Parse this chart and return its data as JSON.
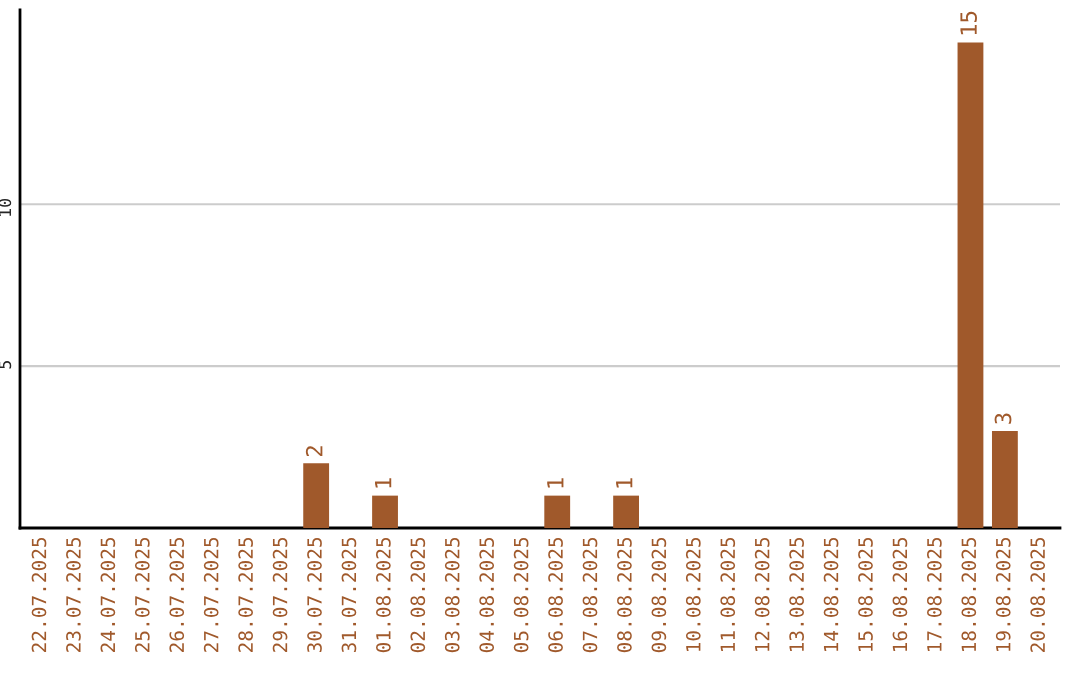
{
  "chart_data": {
    "type": "bar",
    "categories": [
      "22.07.2025",
      "23.07.2025",
      "24.07.2025",
      "25.07.2025",
      "26.07.2025",
      "27.07.2025",
      "28.07.2025",
      "29.07.2025",
      "30.07.2025",
      "31.07.2025",
      "01.08.2025",
      "02.08.2025",
      "03.08.2025",
      "04.08.2025",
      "05.08.2025",
      "06.08.2025",
      "07.08.2025",
      "08.08.2025",
      "09.08.2025",
      "10.08.2025",
      "11.08.2025",
      "12.08.2025",
      "13.08.2025",
      "14.08.2025",
      "15.08.2025",
      "16.08.2025",
      "17.08.2025",
      "18.08.2025",
      "19.08.2025",
      "20.08.2025"
    ],
    "values": [
      0,
      0,
      0,
      0,
      0,
      0,
      0,
      0,
      2,
      0,
      1,
      0,
      0,
      0,
      0,
      1,
      0,
      1,
      0,
      0,
      0,
      0,
      0,
      0,
      0,
      0,
      0,
      15,
      3,
      0
    ],
    "value_labels": [
      null,
      null,
      null,
      null,
      null,
      null,
      null,
      null,
      "2",
      null,
      "1",
      null,
      null,
      null,
      null,
      "1",
      null,
      "1",
      null,
      null,
      null,
      null,
      null,
      null,
      null,
      null,
      null,
      "15",
      "3",
      null
    ],
    "color": "#a0592b",
    "ylim": [
      0,
      16
    ],
    "yticks": [
      5,
      10
    ],
    "grid": "y",
    "legend": false
  }
}
